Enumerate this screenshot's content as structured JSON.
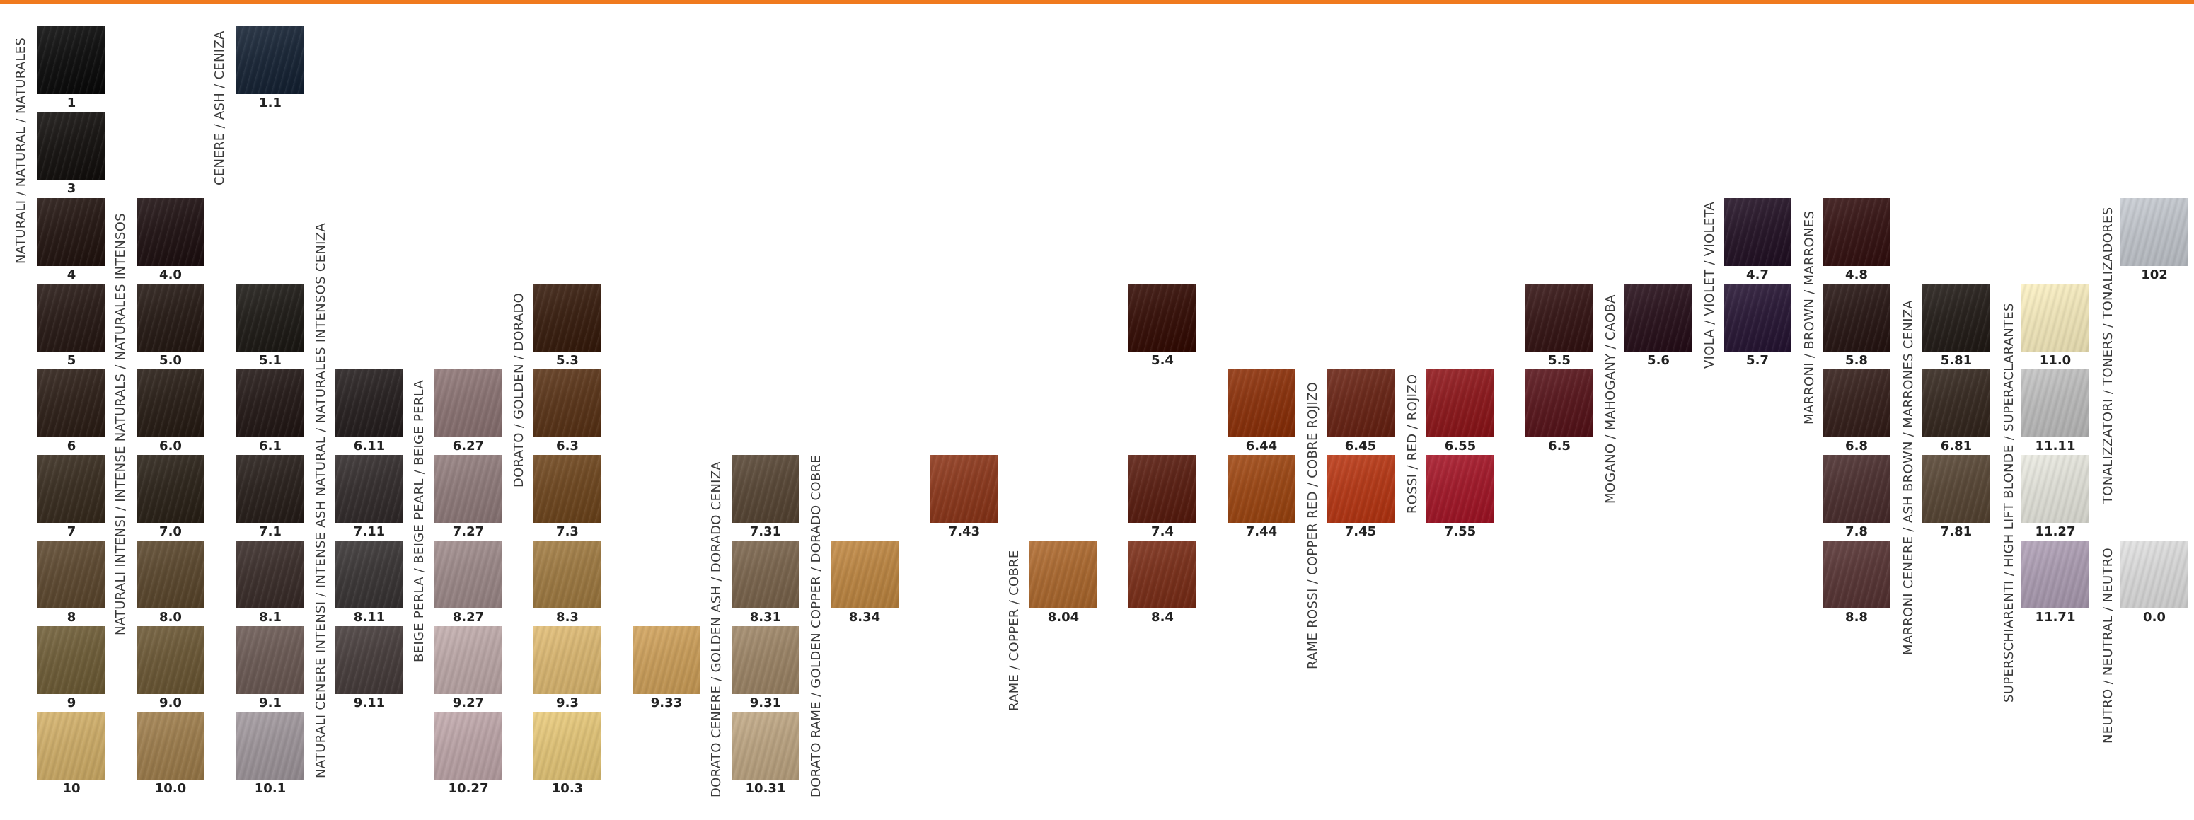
{
  "header_bar_color": "#f07a1e",
  "groups": [
    {
      "id": "naturali",
      "label": "NATURALI / NATURAL / NATURALES"
    },
    {
      "id": "intensi",
      "label": "NATURALI INTENSI / INTENSE NATURALS / NATURALES INTENSOS"
    },
    {
      "id": "cenere",
      "label": "CENERE / ASH / CENIZA"
    },
    {
      "id": "cenere_intensi",
      "label": "NATURALI CENERE INTENSI / INTENSE ASH NATURAL / NATURALES INTENSOS CENIZA"
    },
    {
      "id": "beige",
      "label": "BEIGE PERLA / BEIGE PEARL / BEIGE PERLA"
    },
    {
      "id": "dorato",
      "label": "DORATO / GOLDEN / DORADO"
    },
    {
      "id": "dorato_cenere",
      "label": "DORATO CENERE / GOLDEN ASH / DORADO CENIZA"
    },
    {
      "id": "dorato_rame",
      "label": "DORATO RAME / GOLDEN COPPER / DORADO COBRE"
    },
    {
      "id": "rame",
      "label": "RAME / COPPER / COBRE"
    },
    {
      "id": "rame_rossi",
      "label": "RAME ROSSI / COPPER RED / COBRE ROJIZO"
    },
    {
      "id": "rossi",
      "label": "ROSSI / RED / ROJIZO"
    },
    {
      "id": "mogano",
      "label": "MOGANO / MAHOGANY / CAOBA"
    },
    {
      "id": "viola",
      "label": "VIOLA / VIOLET / VIOLETA"
    },
    {
      "id": "marroni",
      "label": "MARRONI / BROWN / MARRONES"
    },
    {
      "id": "marroni_cenere",
      "label": "MARRONI CENERE / ASH BROWN / MARRONES CENIZA"
    },
    {
      "id": "superschiarenti",
      "label": "SUPERSCHIARENTI / HIGH LIFT BLONDE / SUPERACLARANTES"
    },
    {
      "id": "neutro",
      "label": "NEUTRO / NEUTRAL / NEUTRO"
    },
    {
      "id": "tonalizzatori",
      "label": "TONALIZZATORI / TONERS / TONALIZADORES"
    }
  ],
  "swatches": [
    {
      "code": "1",
      "color": "#141414"
    },
    {
      "code": "3",
      "color": "#1c1917"
    },
    {
      "code": "4",
      "color": "#2a1d19"
    },
    {
      "code": "5",
      "color": "#2e211d"
    },
    {
      "code": "6",
      "color": "#33261f"
    },
    {
      "code": "7",
      "color": "#3d3226"
    },
    {
      "code": "8",
      "color": "#5f4c35"
    },
    {
      "code": "9",
      "color": "#6f5f3c"
    },
    {
      "code": "10",
      "color": "#c9aa6a"
    },
    {
      "code": "4.0",
      "color": "#26191a"
    },
    {
      "code": "5.0",
      "color": "#2c211c"
    },
    {
      "code": "6.0",
      "color": "#2e241d"
    },
    {
      "code": "7.0",
      "color": "#312920"
    },
    {
      "code": "8.0",
      "color": "#5d4b33"
    },
    {
      "code": "9.0",
      "color": "#6c5a3a"
    },
    {
      "code": "10.0",
      "color": "#9b7d50"
    },
    {
      "code": "1.1",
      "color": "#1e2a3a"
    },
    {
      "code": "5.1",
      "color": "#25221e"
    },
    {
      "code": "6.1",
      "color": "#2a201e"
    },
    {
      "code": "7.1",
      "color": "#2e2622"
    },
    {
      "code": "8.1",
      "color": "#3f3330"
    },
    {
      "code": "9.1",
      "color": "#6c5c57"
    },
    {
      "code": "10.1",
      "color": "#9c9499"
    },
    {
      "code": "6.11",
      "color": "#2c2626"
    },
    {
      "code": "7.11",
      "color": "#383232"
    },
    {
      "code": "8.11",
      "color": "#3e3a3a"
    },
    {
      "code": "9.11",
      "color": "#4a4140"
    },
    {
      "code": "6.27",
      "color": "#8a7474"
    },
    {
      "code": "7.27",
      "color": "#8e7b7b"
    },
    {
      "code": "8.27",
      "color": "#9a8888"
    },
    {
      "code": "9.27",
      "color": "#b8a5a5"
    },
    {
      "code": "10.27",
      "color": "#b8a2a5"
    },
    {
      "code": "5.3",
      "color": "#3d2416"
    },
    {
      "code": "6.3",
      "color": "#5c391f"
    },
    {
      "code": "7.3",
      "color": "#6f4a25"
    },
    {
      "code": "8.3",
      "color": "#9c7a46"
    },
    {
      "code": "9.3",
      "color": "#d4b372"
    },
    {
      "code": "10.3",
      "color": "#dcc078"
    },
    {
      "code": "9.33",
      "color": "#c69c5c"
    },
    {
      "code": "7.31",
      "color": "#5a4a3a"
    },
    {
      "code": "8.31",
      "color": "#7a6650"
    },
    {
      "code": "9.31",
      "color": "#9a8468"
    },
    {
      "code": "10.31",
      "color": "#b8a282"
    },
    {
      "code": "8.34",
      "color": "#b88546"
    },
    {
      "code": "7.43",
      "color": "#8a3c22"
    },
    {
      "code": "8.04",
      "color": "#a86a34"
    },
    {
      "code": "5.4",
      "color": "#3a150e"
    },
    {
      "code": "7.4",
      "color": "#5c2418"
    },
    {
      "code": "8.4",
      "color": "#7a3420"
    },
    {
      "code": "6.44",
      "color": "#8a3612"
    },
    {
      "code": "7.44",
      "color": "#9a4a1a"
    },
    {
      "code": "6.45",
      "color": "#6a2a1c"
    },
    {
      "code": "7.45",
      "color": "#b23c1c"
    },
    {
      "code": "6.55",
      "color": "#8c1e22"
    },
    {
      "code": "7.55",
      "color": "#a01e2e"
    },
    {
      "code": "5.5",
      "color": "#3a1c1c"
    },
    {
      "code": "6.5",
      "color": "#5a1c22"
    },
    {
      "code": "5.6",
      "color": "#2e1822"
    },
    {
      "code": "4.7",
      "color": "#2a1a2c"
    },
    {
      "code": "5.7",
      "color": "#2e1e3a"
    },
    {
      "code": "4.8",
      "color": "#3a1a1a"
    },
    {
      "code": "5.8",
      "color": "#2e1e1c"
    },
    {
      "code": "6.8",
      "color": "#3a2622"
    },
    {
      "code": "7.8",
      "color": "#4e3434"
    },
    {
      "code": "8.8",
      "color": "#5a3a3a"
    },
    {
      "code": "5.81",
      "color": "#2a2420"
    },
    {
      "code": "6.81",
      "color": "#3a2e26"
    },
    {
      "code": "7.81",
      "color": "#5a4a3a"
    },
    {
      "code": "11.0",
      "color": "#ece2b8"
    },
    {
      "code": "11.11",
      "color": "#b8b8b8"
    },
    {
      "code": "11.27",
      "color": "#dcdcd4"
    },
    {
      "code": "11.71",
      "color": "#a89aae"
    },
    {
      "code": "0.0",
      "color": "#d4d4d4"
    },
    {
      "code": "102",
      "color": "#bcc0c6"
    }
  ]
}
